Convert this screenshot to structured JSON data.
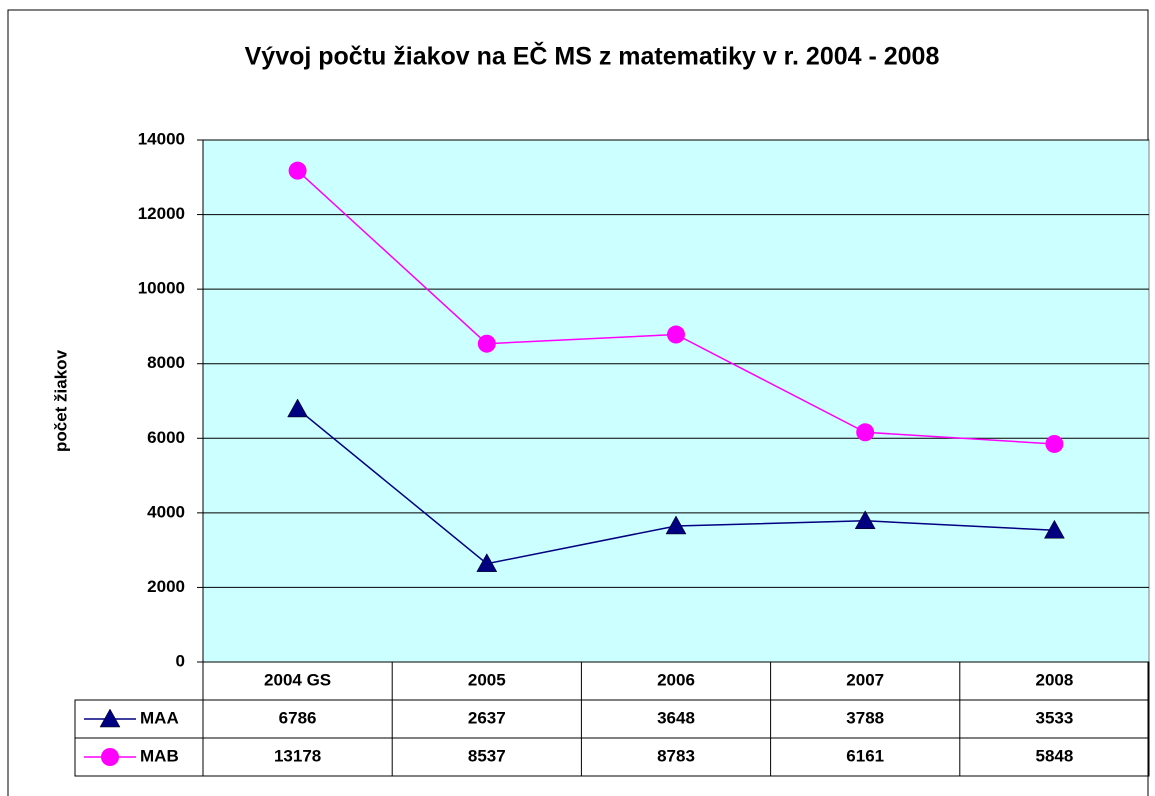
{
  "chart_data": {
    "type": "line",
    "title": "Vývoj počtu žiakov na EČ MS z matematiky v r. 2004 - 2008",
    "y_label": "počet žiakov",
    "categories": [
      "2004 GS",
      "2005",
      "2006",
      "2007",
      "2008"
    ],
    "series": [
      {
        "name": "MAA",
        "color": "#000080",
        "marker": "triangle",
        "values": [
          6786,
          2637,
          3648,
          3788,
          3533
        ]
      },
      {
        "name": "MAB",
        "color": "#ff00ff",
        "marker": "circle",
        "values": [
          13178,
          8537,
          8783,
          6161,
          5848
        ]
      }
    ],
    "ylim": [
      0,
      14000
    ],
    "yticks": [
      0,
      2000,
      4000,
      6000,
      8000,
      10000,
      12000,
      14000
    ],
    "grid": true,
    "plot_background": "#ccffff",
    "data_table": true
  }
}
